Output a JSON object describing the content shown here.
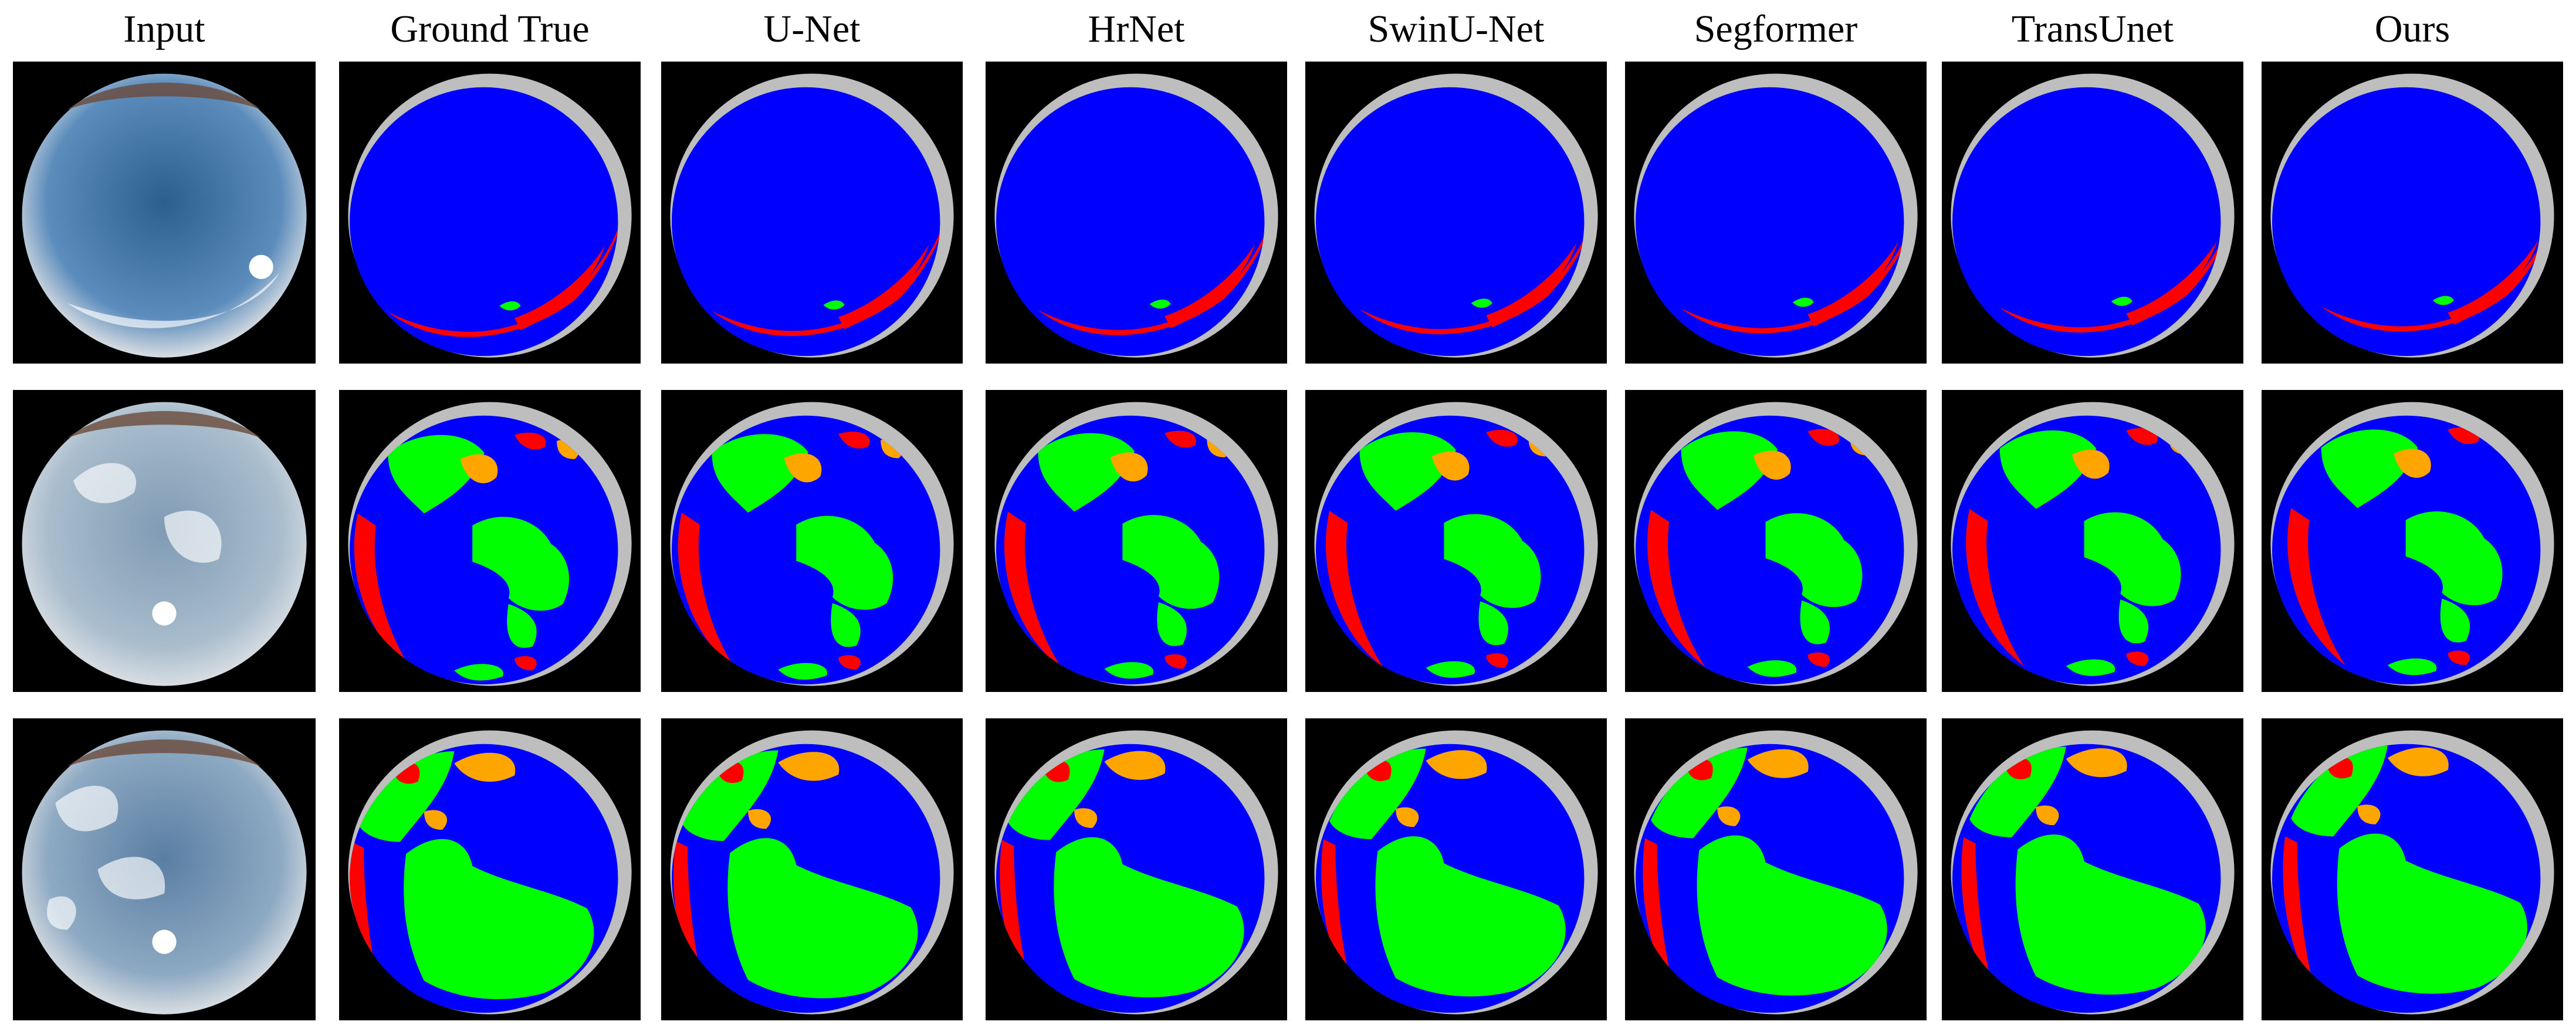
{
  "columns": [
    {
      "label": "Input",
      "kind": "photo"
    },
    {
      "label": "Ground True",
      "kind": "mask"
    },
    {
      "label": "U-Net",
      "kind": "mask"
    },
    {
      "label": "HrNet",
      "kind": "mask"
    },
    {
      "label": "SwinU-Net",
      "kind": "mask"
    },
    {
      "label": "Segformer",
      "kind": "mask"
    },
    {
      "label": "TransUnet",
      "kind": "mask"
    },
    {
      "label": "Ours",
      "kind": "mask"
    }
  ],
  "rows": [
    {
      "scene": "mostly-clear-sky"
    },
    {
      "scene": "partly-cloudy-sky"
    },
    {
      "scene": "cloudy-sky"
    }
  ],
  "class_colors": {
    "background": "#000000",
    "sky": "#0000ff",
    "obstruction": "#bebebe",
    "cloud-thick": "#00ff00",
    "cloud-thin": "#ff0000",
    "cloud-edge": "#ffa500"
  }
}
